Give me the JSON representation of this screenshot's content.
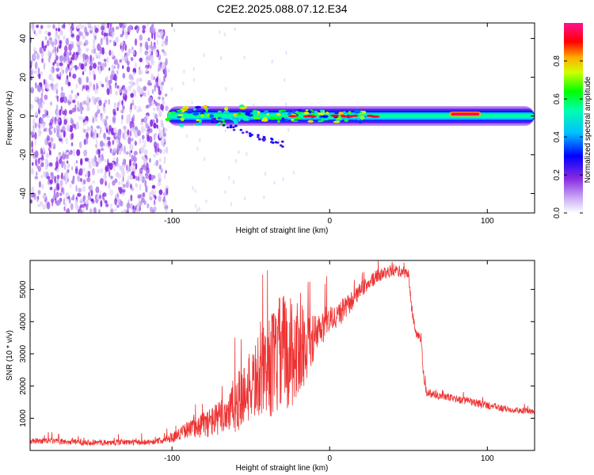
{
  "figure_title": "C2E2.2025.088.07.12.E34",
  "colors": {
    "snr_line": "#ee3333",
    "frame": "#000000",
    "background": "#ffffff"
  },
  "chart_data": [
    {
      "type": "heatmap",
      "title": "C2E2.2025.088.07.12.E34",
      "xlabel": "Height of straight line (km)",
      "ylabel": "Frequency (Hz)",
      "xlim": [
        -190,
        130
      ],
      "ylim": [
        -50,
        48
      ],
      "x_ticks": [
        {
          "value": -100,
          "label": "-100"
        },
        {
          "value": 0,
          "label": "0"
        },
        {
          "value": 100,
          "label": "100"
        }
      ],
      "y_ticks": [
        {
          "value": 40,
          "label": "40"
        },
        {
          "value": 20,
          "label": "20"
        },
        {
          "value": 0,
          "label": "0"
        },
        {
          "value": -20,
          "label": "-20"
        },
        {
          "value": -40,
          "label": "-40"
        }
      ],
      "colorbar": {
        "label": "Normalized spectral amplitude",
        "range": [
          0,
          1
        ],
        "ticks": [
          {
            "value": 0.0,
            "label": "0.0"
          },
          {
            "value": 0.2,
            "label": "0.2"
          },
          {
            "value": 0.4,
            "label": "0.4"
          },
          {
            "value": 0.6,
            "label": "0.6"
          },
          {
            "value": 0.8,
            "label": "0.8"
          }
        ]
      },
      "regions": [
        {
          "name": "noise",
          "x_range": [
            -190,
            -103
          ],
          "freq_range": [
            -50,
            48
          ],
          "amplitude": 0.08
        },
        {
          "name": "signal-band",
          "x_range": [
            -103,
            130
          ],
          "center_freq": 0,
          "half_width": 2.5,
          "amplitude": 0.5
        },
        {
          "name": "peak",
          "x_range": [
            76,
            96
          ],
          "center_freq": 1,
          "amplitude": 0.95
        }
      ]
    },
    {
      "type": "line",
      "xlabel": "Height of straight line (km)",
      "ylabel": "SNR (10 * v/v)",
      "xlim": [
        -190,
        130
      ],
      "ylim": [
        0,
        5900
      ],
      "x_ticks": [
        {
          "value": -100,
          "label": "-100"
        },
        {
          "value": 0,
          "label": "0"
        },
        {
          "value": 100,
          "label": "100"
        }
      ],
      "y_ticks": [
        {
          "value": 1000,
          "label": "1000"
        },
        {
          "value": 2000,
          "label": "2000"
        },
        {
          "value": 3000,
          "label": "3000"
        },
        {
          "value": 4000,
          "label": "4000"
        },
        {
          "value": 5000,
          "label": "5000"
        }
      ],
      "series": [
        {
          "name": "SNR",
          "x": [
            -190,
            -180,
            -170,
            -160,
            -150,
            -140,
            -130,
            -120,
            -110,
            -100,
            -90,
            -80,
            -70,
            -60,
            -50,
            -40,
            -30,
            -20,
            -10,
            0,
            10,
            20,
            30,
            40,
            50,
            52,
            55,
            58,
            60,
            62,
            70,
            80,
            90,
            100,
            110,
            120,
            130
          ],
          "values": [
            280,
            300,
            270,
            260,
            250,
            240,
            260,
            250,
            280,
            400,
            650,
            800,
            1000,
            1400,
            2000,
            2500,
            3000,
            3100,
            3500,
            4000,
            4400,
            5000,
            5400,
            5600,
            5500,
            4400,
            3600,
            3500,
            2000,
            1800,
            1700,
            1600,
            1500,
            1400,
            1300,
            1250,
            1200
          ],
          "spread": [
            150,
            150,
            150,
            150,
            150,
            150,
            150,
            150,
            150,
            250,
            400,
            700,
            900,
            1500,
            1800,
            2500,
            3300,
            2600,
            1200,
            700,
            600,
            400,
            350,
            300,
            300,
            300,
            250,
            250,
            250,
            250,
            200,
            200,
            200,
            200,
            180,
            160,
            160
          ]
        }
      ]
    }
  ]
}
